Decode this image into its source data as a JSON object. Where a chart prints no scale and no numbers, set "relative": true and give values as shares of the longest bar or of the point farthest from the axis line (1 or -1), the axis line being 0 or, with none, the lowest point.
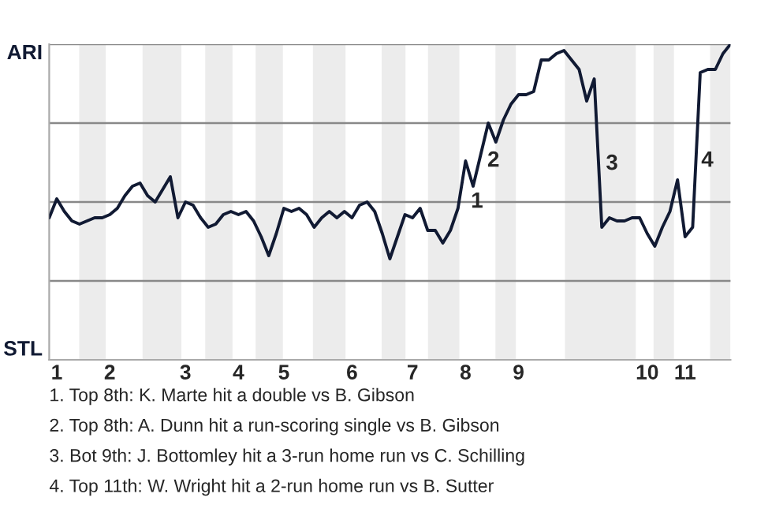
{
  "chart_data": {
    "type": "line",
    "relative": true,
    "categories": [
      null,
      "1",
      null,
      null,
      null,
      null,
      null,
      null,
      "2",
      null,
      null,
      null,
      null,
      null,
      null,
      null,
      null,
      null,
      "3",
      null,
      null,
      null,
      null,
      null,
      null,
      "4",
      null,
      null,
      null,
      null,
      null,
      "5",
      null,
      null,
      null,
      null,
      null,
      null,
      null,
      null,
      "6",
      null,
      null,
      null,
      null,
      null,
      null,
      null,
      "7",
      null,
      null,
      null,
      null,
      null,
      null,
      "8",
      null,
      null,
      null,
      null,
      null,
      null,
      "9",
      null,
      null,
      null,
      null,
      null,
      null,
      null,
      null,
      null,
      null,
      null,
      null,
      null,
      null,
      null,
      null,
      "10",
      null,
      null,
      null,
      null,
      "11",
      null,
      null,
      null,
      null,
      null,
      null
    ],
    "series": [
      {
        "color": "#111a33",
        "values": [
          0.45,
          0.51,
          0.47,
          0.44,
          0.43,
          0.44,
          0.45,
          0.45,
          0.46,
          0.48,
          0.52,
          0.55,
          0.56,
          0.52,
          0.5,
          0.54,
          0.58,
          0.45,
          0.5,
          0.49,
          0.45,
          0.42,
          0.43,
          0.46,
          0.47,
          0.46,
          0.47,
          0.44,
          0.39,
          0.33,
          0.4,
          0.48,
          0.47,
          0.48,
          0.46,
          0.42,
          0.45,
          0.47,
          0.45,
          0.47,
          0.45,
          0.49,
          0.5,
          0.47,
          0.4,
          0.32,
          0.39,
          0.46,
          0.45,
          0.48,
          0.41,
          0.41,
          0.37,
          0.41,
          0.48,
          0.63,
          0.55,
          0.65,
          0.75,
          0.69,
          0.76,
          0.81,
          0.84,
          0.84,
          0.85,
          0.95,
          0.95,
          0.97,
          0.98,
          0.95,
          0.92,
          0.82,
          0.89,
          0.42,
          0.45,
          0.44,
          0.44,
          0.45,
          0.45,
          0.4,
          0.36,
          0.42,
          0.47,
          0.57,
          0.39,
          0.42,
          0.91,
          0.92,
          0.92,
          0.97,
          1.0
        ]
      }
    ],
    "ref_lines": [
      {
        "axis": "y",
        "value": 0.25,
        "color": "#888888"
      },
      {
        "axis": "y",
        "value": 0.5,
        "color": "#888888"
      },
      {
        "axis": "y",
        "value": 0.75,
        "color": "#888888"
      },
      {
        "axis": "y",
        "value": 1,
        "color": "#888888"
      }
    ],
    "annotations": [
      "ARI",
      "STL",
      "1",
      "2",
      "3",
      "4",
      "1. Top 8th: K. Marte hit a double vs B. Gibson",
      "2. Top 8th: A. Dunn hit a run-scoring single vs B. Gibson",
      "3. Bot 9th: J. Bottomley hit a 3-run home run vs C. Schilling",
      "4. Top 11th: W. Wright hit a 2-run home run vs B. Sutter"
    ]
  }
}
